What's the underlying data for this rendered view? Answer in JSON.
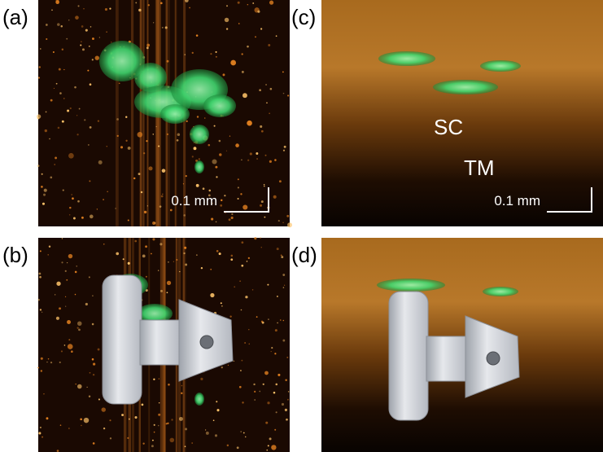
{
  "panels": [
    {
      "label": "(a)",
      "scale_bar": "0.1 mm"
    },
    {
      "label": "(b)"
    },
    {
      "label": "(c)",
      "annotations": [
        "SC",
        "TM"
      ],
      "scale_bar": "0.1 mm"
    },
    {
      "label": "(d)"
    }
  ]
}
